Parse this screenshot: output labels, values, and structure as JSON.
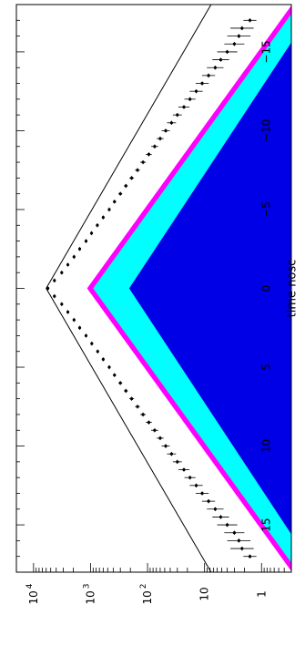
{
  "chart_data": {
    "type": "area",
    "orientation": "rotated-90-counterclockwise",
    "title": "",
    "xlabel": "time nosc",
    "ylabel": "",
    "xlim": [
      -18,
      18
    ],
    "ylim": [
      0.3,
      20000
    ],
    "yscale": "log",
    "grid": false,
    "x_ticks": [
      -15,
      -10,
      -5,
      0,
      5,
      10,
      15
    ],
    "x_tick_labels": [
      "−15",
      "−10",
      "−5",
      "0",
      "5",
      "10",
      "15"
    ],
    "y_ticks": [
      {
        "base": "1",
        "exp": ""
      },
      {
        "base": "10",
        "exp": ""
      },
      {
        "base": "10",
        "exp": "2"
      },
      {
        "base": "10",
        "exp": "3"
      },
      {
        "base": "10",
        "exp": "4"
      }
    ],
    "series": [
      {
        "type": "area",
        "color": "#0000e6",
        "peak_x": 0,
        "peak_y": 210,
        "decay": 0.42
      },
      {
        "type": "area",
        "color": "#00ffff",
        "peak_x": 0,
        "peak_y": 900,
        "decay": 0.46
      },
      {
        "type": "area",
        "color": "#ff00ff",
        "peak_x": 0,
        "peak_y": 1150,
        "decay": 0.46
      },
      {
        "type": "line",
        "color": "#000000",
        "peak_x": 0,
        "peak_y": 6000,
        "decay": 0.37
      },
      {
        "type": "scatter",
        "color": "#000000",
        "points": [
          [
            -17,
            1.6,
            1.3
          ],
          [
            -16.5,
            2.2,
            1.6
          ],
          [
            -16,
            2.5,
            1.6
          ],
          [
            -15.5,
            3.0,
            1.5
          ],
          [
            -15,
            4.0,
            1.5
          ],
          [
            -14.5,
            5.2,
            1.4
          ],
          [
            -14,
            6.5,
            1.4
          ],
          [
            -13.5,
            8.5,
            1.3
          ],
          [
            -13,
            11,
            1.3
          ],
          [
            -12.5,
            14,
            1.3
          ],
          [
            -12,
            18,
            1.25
          ],
          [
            -11.5,
            23,
            1.25
          ],
          [
            -11,
            30,
            1.2
          ],
          [
            -10.5,
            38,
            1.2
          ],
          [
            -10,
            48,
            1.18
          ],
          [
            -9.5,
            60,
            1.15
          ],
          [
            -9,
            75,
            1.15
          ],
          [
            -8.5,
            95,
            1.13
          ],
          [
            -8,
            120,
            1.12
          ],
          [
            -7.5,
            150,
            1.1
          ],
          [
            -7,
            190,
            1.1
          ],
          [
            -6.5,
            240,
            1.08
          ],
          [
            -6,
            300,
            1.08
          ],
          [
            -5.5,
            380,
            1.07
          ],
          [
            -5,
            470,
            1.06
          ],
          [
            -4.5,
            600,
            1.05
          ],
          [
            -4,
            760,
            1.05
          ],
          [
            -3.5,
            960,
            1.04
          ],
          [
            -3,
            1200,
            1.04
          ],
          [
            -2.5,
            1550,
            1.03
          ],
          [
            -2,
            1950,
            1.03
          ],
          [
            -1.5,
            2500,
            1.03
          ],
          [
            -1,
            3200,
            1.02
          ],
          [
            -0.5,
            4300,
            1.02
          ],
          [
            0,
            5600,
            1.02
          ],
          [
            0.5,
            4300,
            1.02
          ],
          [
            1,
            3200,
            1.02
          ],
          [
            1.5,
            2500,
            1.03
          ],
          [
            2,
            1950,
            1.03
          ],
          [
            2.5,
            1550,
            1.03
          ],
          [
            3,
            1200,
            1.04
          ],
          [
            3.5,
            950,
            1.04
          ],
          [
            4,
            750,
            1.05
          ],
          [
            4.5,
            600,
            1.05
          ],
          [
            5,
            470,
            1.06
          ],
          [
            5.5,
            380,
            1.07
          ],
          [
            6,
            300,
            1.08
          ],
          [
            6.5,
            240,
            1.08
          ],
          [
            7,
            190,
            1.1
          ],
          [
            7.5,
            150,
            1.1
          ],
          [
            8,
            120,
            1.12
          ],
          [
            8.5,
            95,
            1.13
          ],
          [
            9,
            75,
            1.15
          ],
          [
            9.5,
            60,
            1.15
          ],
          [
            10,
            48,
            1.18
          ],
          [
            10.5,
            38,
            1.2
          ],
          [
            11,
            30,
            1.2
          ],
          [
            11.5,
            23,
            1.25
          ],
          [
            12,
            18,
            1.25
          ],
          [
            12.5,
            14,
            1.3
          ],
          [
            13,
            11,
            1.3
          ],
          [
            13.5,
            8.5,
            1.3
          ],
          [
            14,
            6.5,
            1.4
          ],
          [
            14.5,
            5.2,
            1.4
          ],
          [
            15,
            4.0,
            1.5
          ],
          [
            15.5,
            3.0,
            1.5
          ],
          [
            16,
            2.5,
            1.6
          ],
          [
            16.5,
            2.2,
            1.6
          ],
          [
            17,
            1.6,
            1.3
          ]
        ]
      }
    ]
  }
}
